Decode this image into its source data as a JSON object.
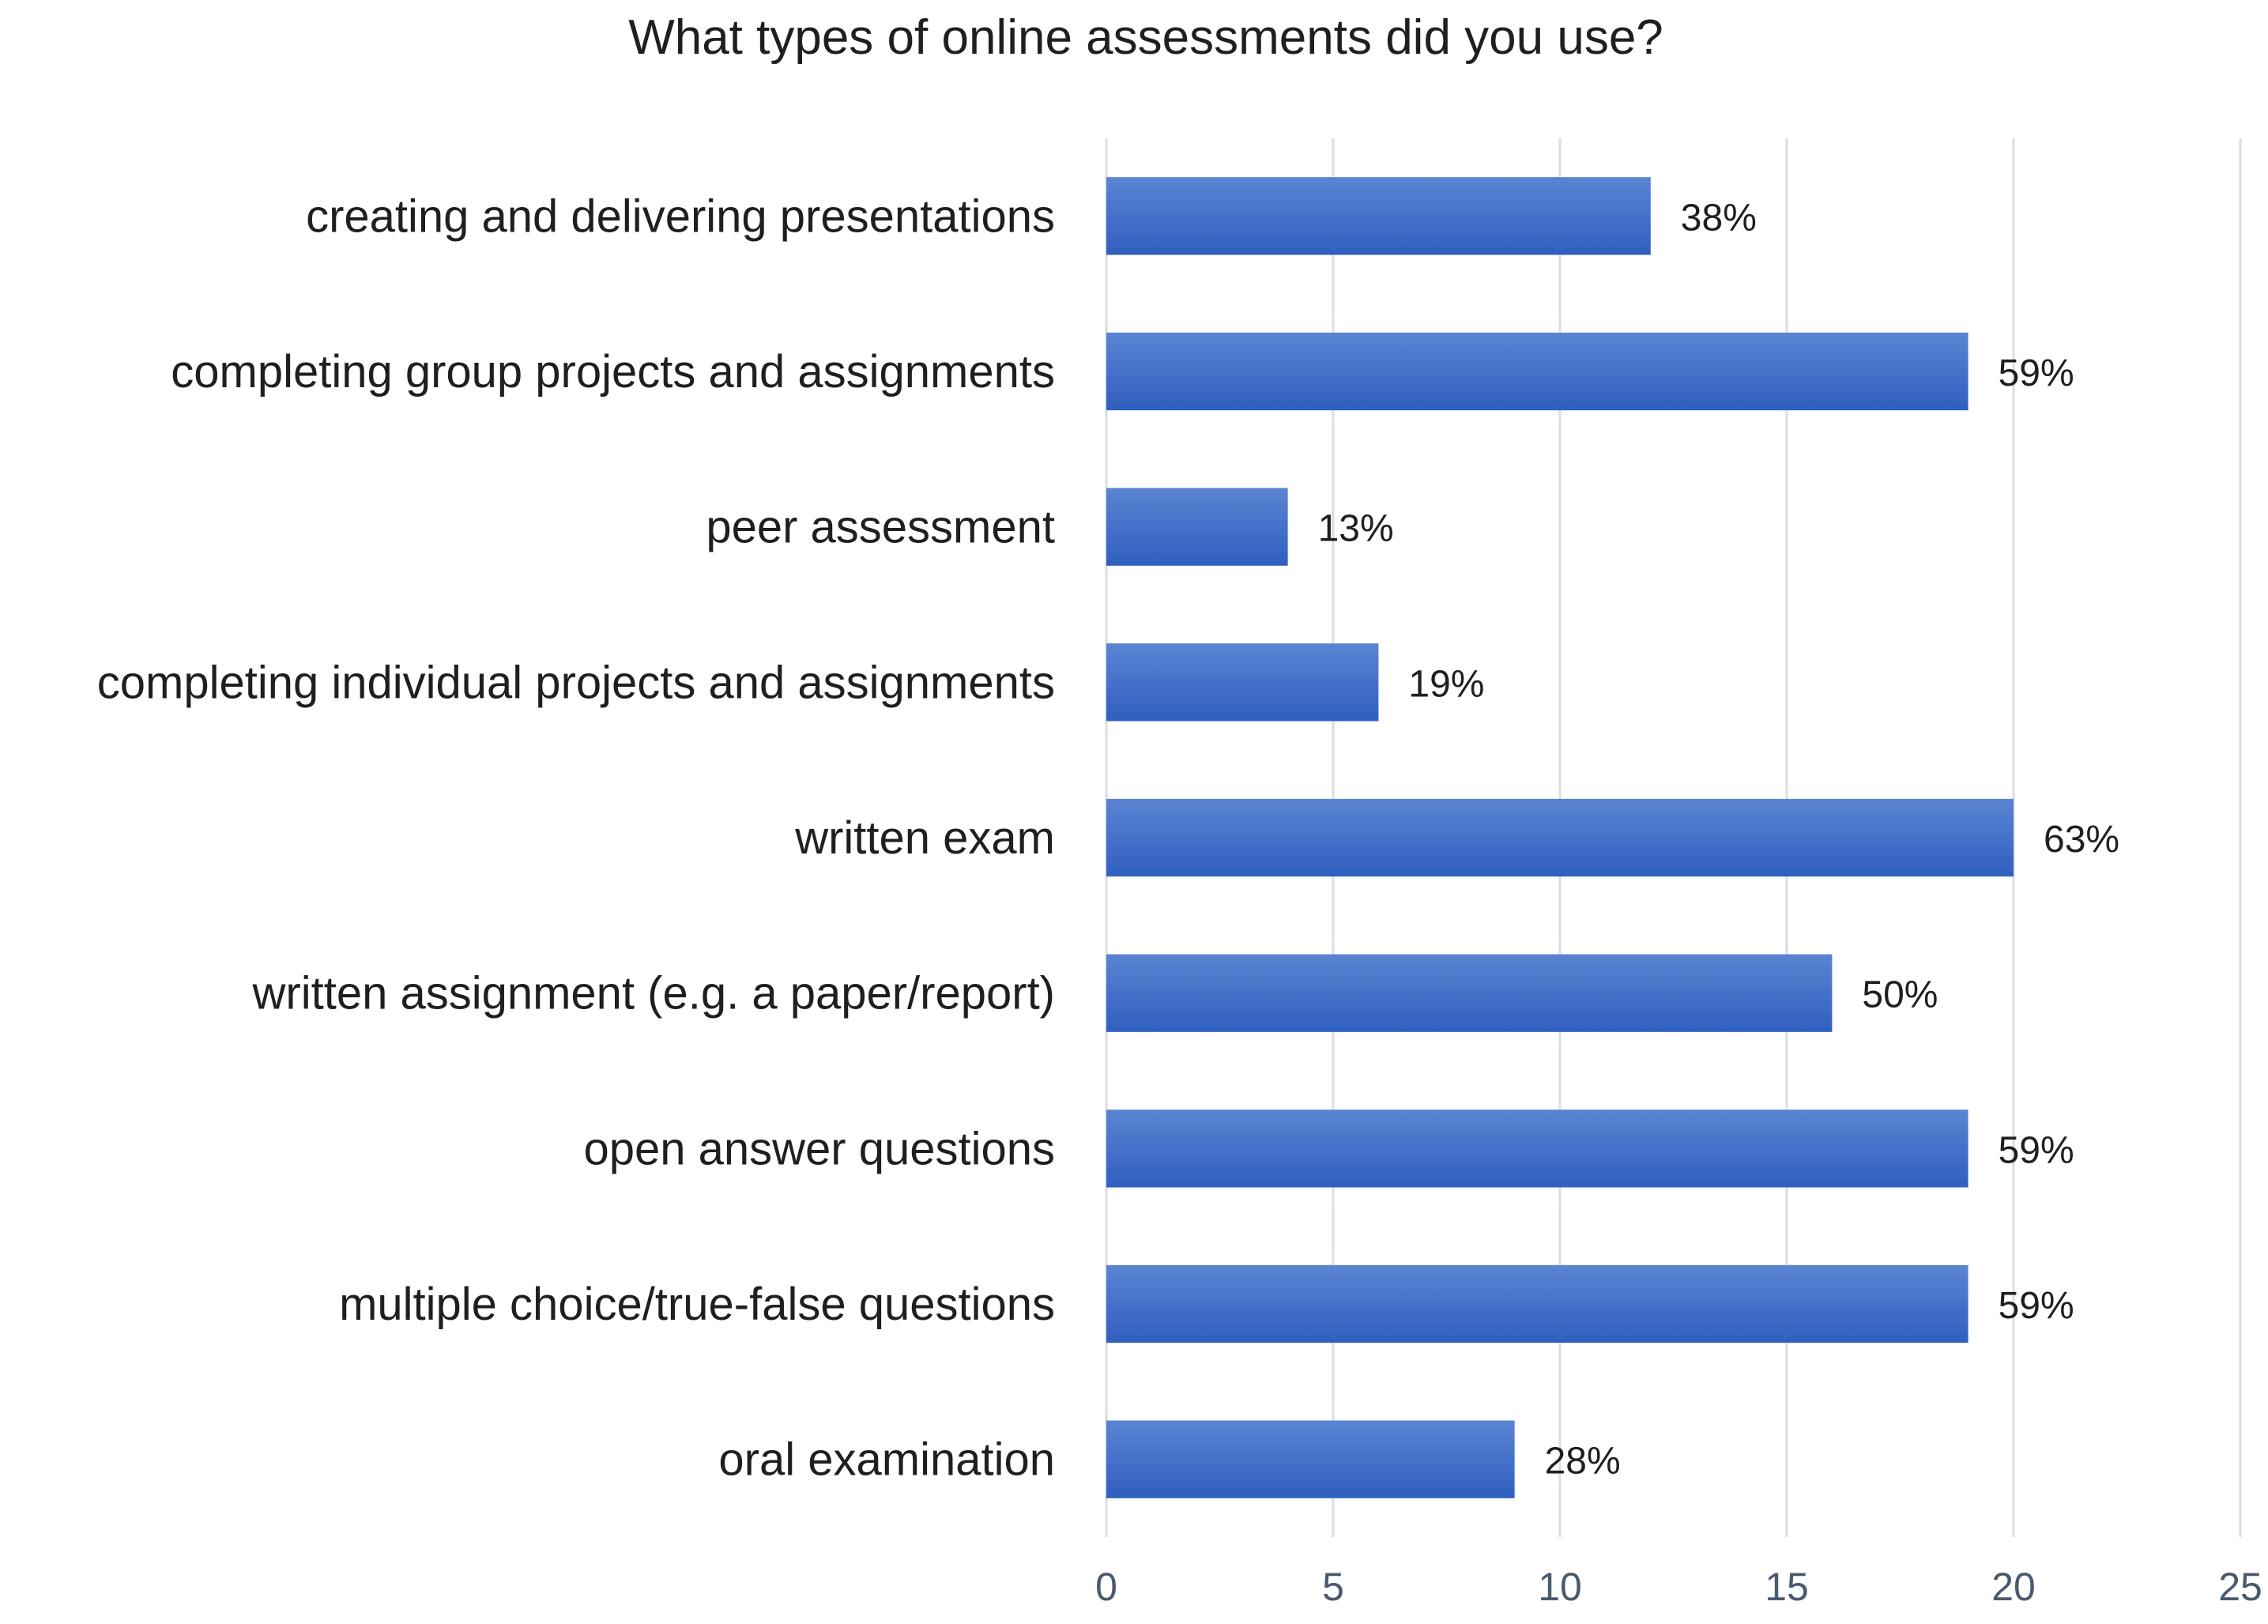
{
  "chart_data": {
    "type": "bar",
    "orientation": "horizontal",
    "title": "What types of online assessments did you use?",
    "xlabel": "",
    "ylabel": "",
    "categories": [
      "creating and delivering presentations",
      "completing group projects and assignments",
      "peer assessment",
      "completing individual projects and assignments",
      "written exam",
      "written assignment (e.g. a paper/report)",
      "open answer questions",
      "multiple choice/true-false questions",
      "oral examination"
    ],
    "values": [
      12,
      19,
      4,
      6,
      20,
      16,
      19,
      19,
      9
    ],
    "data_labels": [
      "38%",
      "59%",
      "13%",
      "19%",
      "63%",
      "50%",
      "59%",
      "59%",
      "28%"
    ],
    "xlim": [
      0,
      25
    ],
    "xticks": [
      0,
      5,
      10,
      15,
      20,
      25
    ],
    "grid": "vertical",
    "legend": "none",
    "colors": {
      "bar_top": "#5b84d3",
      "bar_bottom": "#2f5fbf",
      "gridline": "#d9dee5"
    }
  }
}
